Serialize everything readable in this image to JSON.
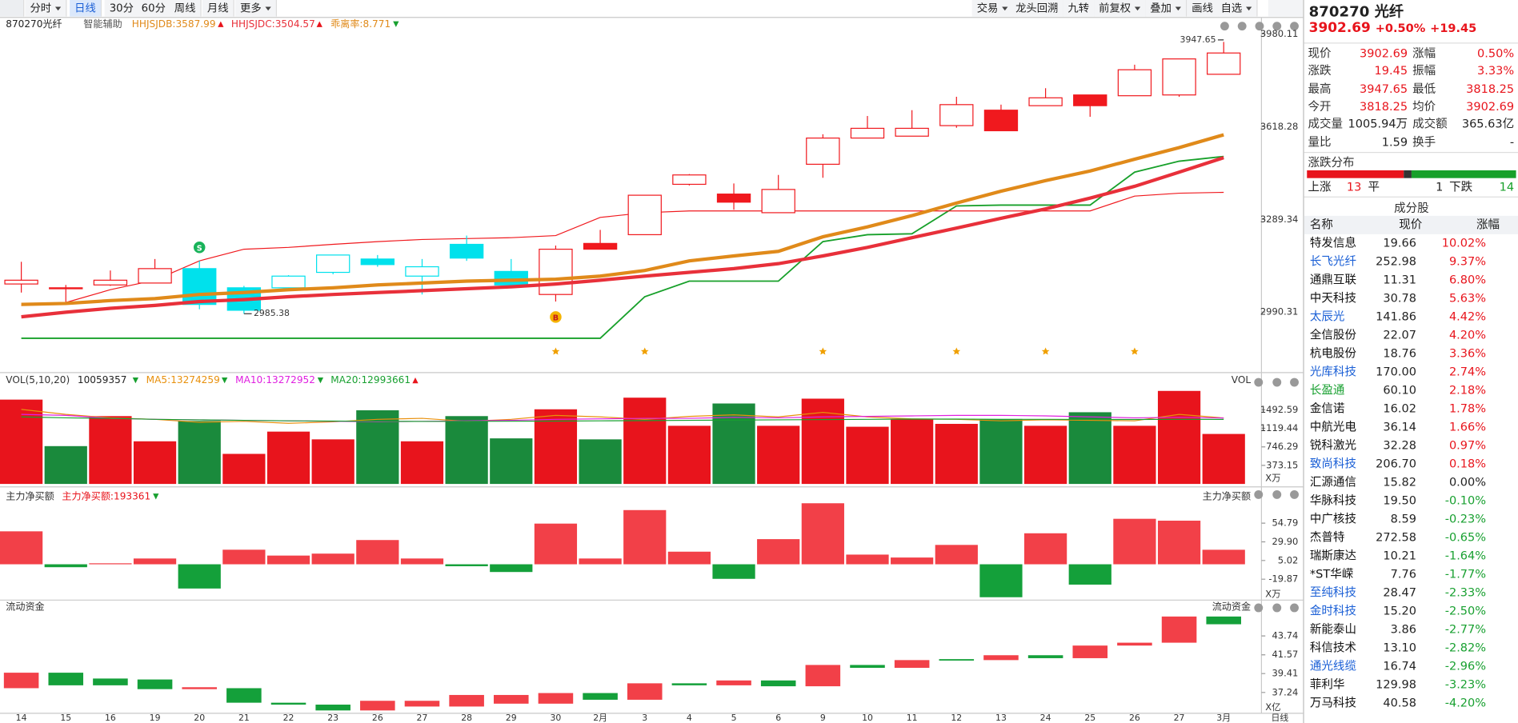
{
  "toolbar": {
    "left": [
      "分时",
      "日线",
      "30分",
      "60分",
      "周线",
      "月线",
      "更多"
    ],
    "right": [
      "交易",
      "龙头回溯",
      "九转",
      "前复权",
      "叠加",
      "画线",
      "自选"
    ]
  },
  "chart_data": [
    {
      "type": "candlestick",
      "title": "870270光纤",
      "assist": "智能辅助",
      "log": true,
      "categories": [
        "14",
        "15",
        "16",
        "19",
        "20",
        "21",
        "22",
        "23",
        "26",
        "27",
        "28",
        "29",
        "30",
        "2月",
        "3",
        "4",
        "5",
        "6",
        "9",
        "10",
        "11",
        "12",
        "13",
        "24",
        "25",
        "26",
        "27",
        "3月"
      ],
      "open": [
        3078,
        3066,
        3075,
        3081,
        3127,
        3066,
        3066,
        3115,
        3158,
        3103,
        3206,
        3118,
        3045,
        3209,
        3238,
        3410,
        3376,
        3312,
        3481,
        3576,
        3583,
        3622,
        3680,
        3697,
        3738,
        3735,
        3738,
        3818.25
      ],
      "high": [
        3149,
        3075,
        3121,
        3158,
        3152,
        3072,
        3106,
        3171,
        3171,
        3158,
        3235,
        3158,
        3202,
        3254,
        3372,
        3446,
        3413,
        3443,
        3590,
        3658,
        3680,
        3731,
        3701,
        3764,
        3738,
        3856,
        3879,
        3947.65
      ],
      "low": [
        3051,
        3020,
        3072,
        3081,
        2999,
        2985.38,
        3063,
        3109,
        3133,
        3045,
        3152,
        3069,
        3023,
        3190,
        3238,
        3406,
        3322,
        3312,
        3433,
        3576,
        3583,
        3614,
        3603,
        3697,
        3655,
        3735,
        3731,
        3818.25
      ],
      "close": [
        3090,
        3063,
        3090,
        3127,
        3014,
        2996,
        3103,
        3171,
        3140,
        3133,
        3161,
        3075,
        3190,
        3190,
        3372,
        3443,
        3348,
        3392,
        3576,
        3612,
        3612,
        3701,
        3603,
        3727,
        3697,
        3836,
        3879,
        3902.69
      ],
      "colors": [
        "#f0191e",
        "#f0191e",
        "#f0191e",
        "#f0191e",
        "#00e1ec",
        "#00e1ec",
        "#00e1ec",
        "#00e1ec",
        "#00e1ec",
        "#00e1ec",
        "#00e1ec",
        "#00e1ec",
        "#f0191e",
        "#f0191e",
        "#f0191e",
        "#f0191e",
        "#f0191e",
        "#f0191e",
        "#f0191e",
        "#f0191e",
        "#f0191e",
        "#f0191e",
        "#f0191e",
        "#f0191e",
        "#f0191e",
        "#f0191e",
        "#f0191e",
        "#f0191e"
      ],
      "lines": [
        {
          "name": "HHJSJDB",
          "color": "#e08a1a",
          "width": 3.5,
          "values": [
            3014,
            3017,
            3026,
            3032,
            3045,
            3051,
            3060,
            3066,
            3075,
            3081,
            3087,
            3090,
            3093,
            3103,
            3121,
            3152,
            3168,
            3183,
            3231,
            3264,
            3302,
            3345,
            3386,
            3423,
            3457,
            3499,
            3541,
            3587.99
          ]
        },
        {
          "name": "HHJSJDC",
          "color": "#e8303a",
          "width": 3.5,
          "values": [
            2976,
            2990,
            3002,
            3011,
            3023,
            3029,
            3038,
            3045,
            3051,
            3057,
            3063,
            3069,
            3078,
            3090,
            3103,
            3115,
            3127,
            3143,
            3168,
            3196,
            3228,
            3260,
            3293,
            3325,
            3362,
            3403,
            3453,
            3504.57
          ]
        },
        {
          "color": "#17a02a",
          "width": 1.5,
          "values": [
            2911,
            2911,
            2911,
            2911,
            2911,
            2911,
            2911,
            2911,
            2911,
            2911,
            2911,
            2911,
            2911,
            2911,
            3038,
            3087,
            3087,
            3087,
            3215,
            3238,
            3241,
            3335,
            3338,
            3338,
            3338,
            3453,
            3492,
            3509
          ]
        },
        {
          "color": "#f0191e",
          "width": 1,
          "values": [
            3011,
            3020,
            3060,
            3090,
            3152,
            3190,
            3196,
            3206,
            3215,
            3222,
            3225,
            3228,
            3235,
            3296,
            3312,
            3318,
            3318,
            3318,
            3318,
            3318,
            3318,
            3318,
            3318,
            3318,
            3318,
            3369,
            3379,
            3382
          ]
        }
      ],
      "indicator": {
        "name": "乖离率",
        "value": 8.771
      },
      "signals": [
        {
          "index": 4,
          "label": "S"
        },
        {
          "index": 12,
          "label": "B"
        }
      ],
      "ylim": [
        2810,
        4048
      ],
      "yticks": [
        2990.31,
        3289.34,
        3618.28,
        3980.11
      ]
    },
    {
      "type": "bar",
      "title": "VOL(5,10,20)",
      "right_title": "VOL",
      "legend_value": 10059357,
      "unit": "X万",
      "values": [
        1697,
        761,
        1365,
        858,
        1268,
        605,
        1053,
        897,
        1482,
        858,
        1365,
        917,
        1502,
        897,
        1736,
        1170,
        1619,
        1170,
        1716,
        1151,
        1307,
        1209,
        1307,
        1170,
        1443,
        1170,
        1872,
        1005.94
      ],
      "colors": [
        "#e8141c",
        "#1a8a3c",
        "#e8141c",
        "#e8141c",
        "#1a8a3c",
        "#e8141c",
        "#e8141c",
        "#e8141c",
        "#1a8a3c",
        "#e8141c",
        "#1a8a3c",
        "#1a8a3c",
        "#e8141c",
        "#1a8a3c",
        "#e8141c",
        "#e8141c",
        "#1a8a3c",
        "#e8141c",
        "#e8141c",
        "#e8141c",
        "#e8141c",
        "#e8141c",
        "#1a8a3c",
        "#e8141c",
        "#1a8a3c",
        "#e8141c",
        "#e8141c",
        "#e8141c"
      ],
      "lines": [
        {
          "name": "MA5",
          "color": "#e8900c",
          "legend_value": 13274259,
          "values": [
            1500,
            1400,
            1330,
            1300,
            1240,
            1260,
            1220,
            1250,
            1300,
            1320,
            1260,
            1300,
            1380,
            1350,
            1300,
            1360,
            1390,
            1350,
            1440,
            1350,
            1310,
            1300,
            1270,
            1290,
            1280,
            1270,
            1400,
            1327.4259
          ]
        },
        {
          "name": "MA10",
          "color": "#e020e0",
          "legend_value": 13272952,
          "values": [
            1400,
            1380,
            1320,
            1300,
            1290,
            1280,
            1270,
            1260,
            1250,
            1260,
            1270,
            1280,
            1300,
            1310,
            1320,
            1320,
            1340,
            1330,
            1350,
            1360,
            1370,
            1380,
            1380,
            1370,
            1350,
            1330,
            1340,
            1327.2952
          ]
        },
        {
          "name": "MA20",
          "color": "#18a030",
          "legend_value": 12993661,
          "values": [
            1350,
            1330,
            1320,
            1300,
            1290,
            1280,
            1270,
            1265,
            1260,
            1258,
            1260,
            1262,
            1265,
            1270,
            1275,
            1280,
            1285,
            1290,
            1295,
            1300,
            1305,
            1305,
            1300,
            1300,
            1298,
            1297,
            1300,
            1299.3661
          ]
        }
      ],
      "ylim": [
        0,
        2240
      ],
      "yticks": [
        373.15,
        746.29,
        1119.44,
        1492.59
      ]
    },
    {
      "type": "bar",
      "title": "主力净买额",
      "right_title": "主力净买额",
      "legend": {
        "name": "主力净买额",
        "value": 193361
      },
      "unit": "X万",
      "values": [
        43.9,
        -3.9,
        1.3,
        7.7,
        -32.3,
        19.4,
        11.6,
        14.2,
        32.3,
        7.7,
        -2.6,
        -10.3,
        54.2,
        7.7,
        72.2,
        16.8,
        -19.4,
        33.5,
        81.3,
        12.9,
        9.0,
        25.8,
        -43.9,
        41.3,
        -27.1,
        60.6,
        58.1,
        19.3361
      ],
      "ylim": [
        -47.7,
        100.6
      ],
      "yticks": [
        -19.87,
        5.02,
        {
          "value": 29.9,
          "label": "29.90"
        },
        54.79
      ]
    },
    {
      "type": "floating_bar",
      "title": "流动资金",
      "right_title": "流动资金",
      "unit": "X亿",
      "open": [
        37.73,
        39.51,
        38.84,
        38.73,
        37.62,
        37.73,
        36.06,
        35.84,
        35.17,
        35.62,
        35.62,
        35.95,
        35.95,
        37.17,
        36.4,
        38.29,
        38.06,
        38.62,
        37.95,
        40.4,
        40.07,
        41.07,
        40.96,
        41.52,
        41.18,
        42.63,
        42.96,
        45.97
      ],
      "close": [
        39.51,
        38.06,
        38.06,
        37.62,
        37.84,
        36.06,
        35.84,
        35.17,
        36.28,
        36.28,
        36.95,
        36.95,
        37.17,
        36.4,
        38.29,
        38.06,
        38.62,
        37.95,
        40.4,
        40.07,
        40.96,
        40.96,
        41.52,
        41.18,
        42.63,
        42.96,
        45.97,
        45.08
      ],
      "ylim": [
        34.84,
        47.86
      ],
      "yticks": [
        37.24,
        39.41,
        41.57,
        43.74
      ]
    }
  ],
  "period_label": "日线",
  "quote": {
    "title": "870270 光纤",
    "price": "3902.69",
    "pct": "+0.50%",
    "chg": "+19.45",
    "rows": [
      [
        "现价",
        "3902.69",
        "涨幅",
        "0.50%"
      ],
      [
        "涨跌",
        "19.45",
        "振幅",
        "3.33%"
      ],
      [
        "最高",
        "3947.65",
        "最低",
        "3818.25"
      ],
      [
        "今开",
        "3818.25",
        "均价",
        "3902.69"
      ],
      [
        "成交量",
        "1005.94万",
        "成交额",
        "365.63亿"
      ],
      [
        "量比",
        "1.59",
        "换手",
        "-"
      ]
    ]
  },
  "distribution": {
    "title": "涨跌分布",
    "up_label": "上涨",
    "up": 13,
    "flat_label": "平",
    "flat": 1,
    "down_label": "下跌",
    "down": 14
  },
  "constituents": {
    "title": "成分股",
    "headers": [
      "名称",
      "现价",
      "涨幅"
    ],
    "rows": [
      {
        "name": "特发信息",
        "price": "19.66",
        "change": "10.02%",
        "name_color": "#111"
      },
      {
        "name": "长飞光纤",
        "price": "252.98",
        "change": "9.37%",
        "name_color": "#1a5fd6"
      },
      {
        "name": "通鼎互联",
        "price": "11.31",
        "change": "6.80%",
        "name_color": "#111"
      },
      {
        "name": "中天科技",
        "price": "30.78",
        "change": "5.63%",
        "name_color": "#111"
      },
      {
        "name": "太辰光",
        "price": "141.86",
        "change": "4.42%",
        "name_color": "#1a5fd6"
      },
      {
        "name": "全信股份",
        "price": "22.07",
        "change": "4.20%",
        "name_color": "#111"
      },
      {
        "name": "杭电股份",
        "price": "18.76",
        "change": "3.36%",
        "name_color": "#111"
      },
      {
        "name": "光库科技",
        "price": "170.00",
        "change": "2.74%",
        "name_color": "#1a5fd6"
      },
      {
        "name": "长盈通",
        "price": "60.10",
        "change": "2.18%",
        "name_color": "#18a030"
      },
      {
        "name": "金信诺",
        "price": "16.02",
        "change": "1.78%",
        "name_color": "#111"
      },
      {
        "name": "中航光电",
        "price": "36.14",
        "change": "1.66%",
        "name_color": "#111"
      },
      {
        "name": "锐科激光",
        "price": "32.28",
        "change": "0.97%",
        "name_color": "#111"
      },
      {
        "name": "致尚科技",
        "price": "206.70",
        "change": "0.18%",
        "name_color": "#1a5fd6"
      },
      {
        "name": "汇源通信",
        "price": "15.82",
        "change": "0.00%",
        "name_color": "#111"
      },
      {
        "name": "华脉科技",
        "price": "19.50",
        "change": "-0.10%",
        "name_color": "#111"
      },
      {
        "name": "中广核技",
        "price": "8.59",
        "change": "-0.23%",
        "name_color": "#111"
      },
      {
        "name": "杰普特",
        "price": "272.58",
        "change": "-0.65%",
        "name_color": "#111"
      },
      {
        "name": "瑞斯康达",
        "price": "10.21",
        "change": "-1.64%",
        "name_color": "#111"
      },
      {
        "name": "*ST华嵘",
        "price": "7.76",
        "change": "-1.77%",
        "name_color": "#111"
      },
      {
        "name": "至纯科技",
        "price": "28.47",
        "change": "-2.33%",
        "name_color": "#1a5fd6"
      },
      {
        "name": "金时科技",
        "price": "15.20",
        "change": "-2.50%",
        "name_color": "#1a5fd6"
      },
      {
        "name": "新能泰山",
        "price": "3.86",
        "change": "-2.77%",
        "name_color": "#111"
      },
      {
        "name": "科信技术",
        "price": "13.10",
        "change": "-2.82%",
        "name_color": "#111"
      },
      {
        "name": "通光线缆",
        "price": "16.74",
        "change": "-2.96%",
        "name_color": "#1a5fd6"
      },
      {
        "name": "菲利华",
        "price": "129.98",
        "change": "-3.23%",
        "name_color": "#111"
      },
      {
        "name": "万马科技",
        "price": "40.58",
        "change": "-4.20%",
        "name_color": "#111"
      }
    ]
  }
}
